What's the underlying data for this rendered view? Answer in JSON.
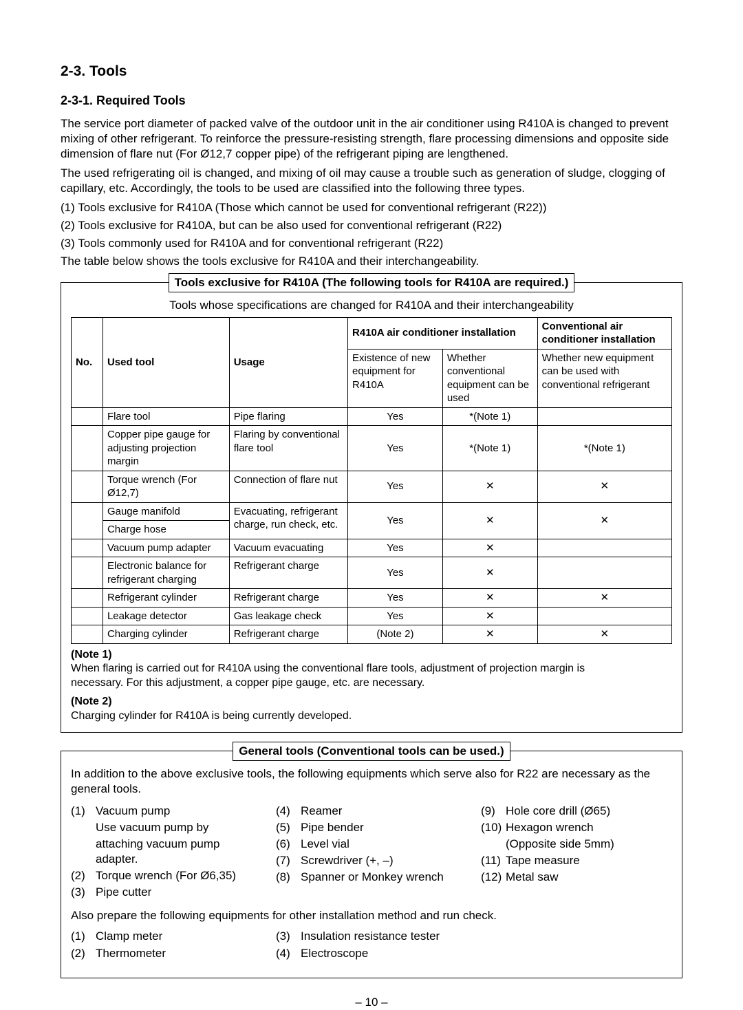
{
  "headings": {
    "main": "2-3.  Tools",
    "sub": "2-3-1.  Required Tools"
  },
  "paragraphs": {
    "p1": "The service port diameter of packed valve of the outdoor unit in the air conditioner using R410A is changed to prevent mixing of other refrigerant. To reinforce the pressure-resisting strength, flare processing dimensions and opposite side dimension of flare nut (For Ø12,7 copper pipe) of the refrigerant piping are lengthened.",
    "p2": "The used refrigerating oil is changed, and mixing of oil may cause a trouble such as generation of sludge, clogging of capillary, etc. Accordingly, the tools to be used are classified into the following three types.",
    "list1": "(1) Tools exclusive for R410A (Those which cannot be used for conventional refrigerant (R22))",
    "list2": "(2) Tools exclusive for R410A, but can be also used for conventional refrigerant (R22)",
    "list3": "(3) Tools commonly used for R410A and for conventional refrigerant (R22)",
    "p3": "The table below shows the tools exclusive for R410A and their interchangeability."
  },
  "box1": {
    "title": "Tools exclusive for R410A (The following tools for R410A are required.)",
    "subtitle": "Tools whose specifications are changed for R410A and their interchangeability",
    "headers": {
      "no": "No.",
      "tool": "Used tool",
      "usage": "Usage",
      "r410a": "R410A air conditioner installation",
      "conv": "Conventional air conditioner installation",
      "sub1": "Existence of new equipment for R410A",
      "sub2": "Whether conventional equipment can be used",
      "sub3": "Whether new equipment can be used with conventional refrigerant"
    },
    "rows": [
      {
        "tool": "Flare tool",
        "usage": "Pipe flaring",
        "c1": "Yes",
        "c2": "*(Note 1)",
        "c3": ""
      },
      {
        "tool": "Copper pipe gauge for adjusting projection margin",
        "usage": "Flaring by conventional flare tool",
        "c1": "Yes",
        "c2": "*(Note 1)",
        "c3": "*(Note 1)"
      },
      {
        "tool": "Torque wrench (For Ø12,7)",
        "usage": "Connection of flare nut",
        "c1": "Yes",
        "c2": "✕",
        "c3": "✕"
      },
      {
        "tool": "Gauge manifold",
        "usage": "Evacuating, refrigerant charge, run check, etc.",
        "c1": "Yes",
        "c2": "✕",
        "c3": "✕",
        "merged": true
      },
      {
        "tool": "Charge hose"
      },
      {
        "tool": "Vacuum pump adapter",
        "usage": "Vacuum evacuating",
        "c1": "Yes",
        "c2": "✕",
        "c3": ""
      },
      {
        "tool": "Electronic balance for refrigerant charging",
        "usage": "Refrigerant charge",
        "c1": "Yes",
        "c2": "✕",
        "c3": ""
      },
      {
        "tool": "Refrigerant cylinder",
        "usage": "Refrigerant charge",
        "c1": "Yes",
        "c2": "✕",
        "c3": "✕"
      },
      {
        "tool": "Leakage detector",
        "usage": "Gas leakage check",
        "c1": "Yes",
        "c2": "✕",
        "c3": ""
      },
      {
        "tool": "Charging cylinder",
        "usage": "Refrigerant charge",
        "c1": "(Note 2)",
        "c2": "✕",
        "c3": "✕"
      }
    ],
    "notes": {
      "n1lbl": "(Note 1)",
      "n1": "When flaring is carried out for R410A using the conventional flare tools, adjustment of projection margin is necessary. For this adjustment, a copper pipe gauge, etc. are necessary.",
      "n2lbl": "(Note 2)",
      "n2": "Charging cylinder for R410A is being currently developed."
    }
  },
  "box2": {
    "title": "General tools (Conventional tools can be used.)",
    "intro": "In addition to the above exclusive tools, the following equipments which serve also for R22 are necessary as the general tools.",
    "col1": [
      {
        "n": "(1)",
        "t": "Vacuum pump",
        "sub": [
          "Use vacuum pump by",
          "attaching vacuum pump adapter."
        ]
      },
      {
        "n": "(2)",
        "t": "Torque wrench (For Ø6,35)"
      },
      {
        "n": "(3)",
        "t": "Pipe cutter"
      }
    ],
    "col2": [
      {
        "n": "(4)",
        "t": "Reamer"
      },
      {
        "n": "(5)",
        "t": "Pipe bender"
      },
      {
        "n": "(6)",
        "t": "Level vial"
      },
      {
        "n": "(7)",
        "t": "Screwdriver (+, –)"
      },
      {
        "n": "(8)",
        "t": "Spanner or Monkey wrench"
      }
    ],
    "col3": [
      {
        "n": "(9)",
        "t": "Hole core drill (Ø65)"
      },
      {
        "n": "(10)",
        "t": "Hexagon wrench",
        "sub": [
          "(Opposite side 5mm)"
        ]
      },
      {
        "n": "(11)",
        "t": "Tape measure"
      },
      {
        "n": "(12)",
        "t": "Metal saw"
      }
    ],
    "also": "Also prepare the following equipments for other installation method and run check.",
    "col4": [
      {
        "n": "(1)",
        "t": "Clamp meter"
      },
      {
        "n": "(2)",
        "t": "Thermometer"
      }
    ],
    "col5": [
      {
        "n": "(3)",
        "t": "Insulation resistance tester"
      },
      {
        "n": "(4)",
        "t": "Electroscope"
      }
    ]
  },
  "page": "– 10 –"
}
